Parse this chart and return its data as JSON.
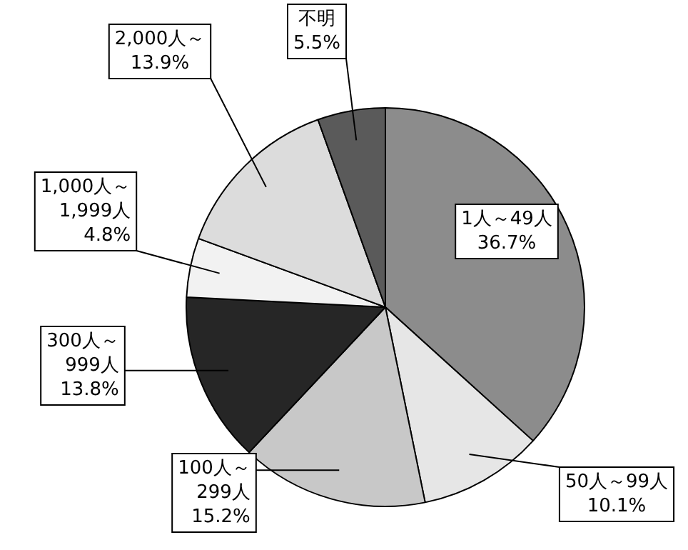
{
  "chart_data": {
    "type": "pie",
    "categories": [
      "1人～49人",
      "50人～99人",
      "100人～299人",
      "300人～999人",
      "1,000人～1,999人",
      "2,000人～",
      "不明"
    ],
    "values": [
      36.7,
      10.1,
      15.2,
      13.8,
      4.8,
      13.9,
      5.5
    ],
    "colors": [
      "#8c8c8c",
      "#e6e6e6",
      "#c8c8c8",
      "#262626",
      "#f2f2f2",
      "#dcdcdc",
      "#5a5a5a"
    ],
    "value_labels": [
      "36.7%",
      "10.1%",
      "15.2%",
      "13.8%",
      "4.8%",
      "13.9%",
      "5.5%"
    ],
    "legend": false
  }
}
